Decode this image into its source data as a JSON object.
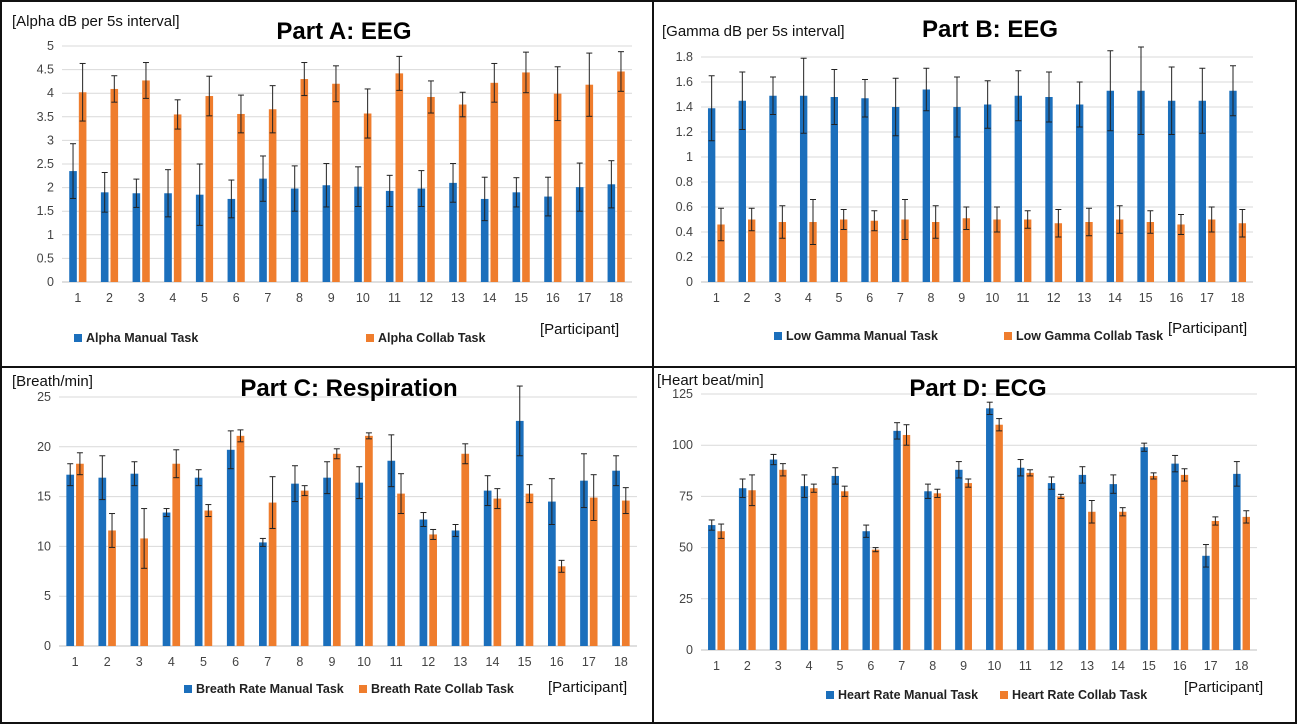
{
  "colors": {
    "manual": "#1b6fbc",
    "collab": "#ef7d2d",
    "grid": "#d9d9d9",
    "axis": "#bfbfbf",
    "border": "#111111"
  },
  "chart_data": [
    {
      "id": "A",
      "type": "bar",
      "title": "Part A: EEG",
      "ylabel": "[Alpha dB per 5s interval]",
      "xlabel": "[Participant]",
      "ylim": [
        0,
        5
      ],
      "yticks": [
        0,
        0.5,
        1,
        1.5,
        2,
        2.5,
        3,
        3.5,
        4,
        4.5,
        5
      ],
      "ytick_labels": [
        "0",
        "0.5",
        "1",
        "1.5",
        "2",
        "2.5",
        "3",
        "3.5",
        "4",
        "4.5",
        "5"
      ],
      "grid": true,
      "legend_position": "bottom",
      "categories": [
        "1",
        "2",
        "3",
        "4",
        "5",
        "6",
        "7",
        "8",
        "9",
        "10",
        "11",
        "12",
        "13",
        "14",
        "15",
        "16",
        "17",
        "18"
      ],
      "series": [
        {
          "name": "Alpha Manual Task",
          "values": [
            2.35,
            1.9,
            1.88,
            1.88,
            1.85,
            1.76,
            2.19,
            1.98,
            2.05,
            2.02,
            1.93,
            1.98,
            2.1,
            1.76,
            1.9,
            1.81,
            2.01,
            2.07
          ],
          "errors": [
            0.58,
            0.42,
            0.3,
            0.5,
            0.65,
            0.4,
            0.48,
            0.48,
            0.46,
            0.42,
            0.33,
            0.38,
            0.41,
            0.46,
            0.31,
            0.41,
            0.51,
            0.5
          ]
        },
        {
          "name": "Alpha Collab Task",
          "values": [
            4.02,
            4.09,
            4.27,
            3.55,
            3.94,
            3.56,
            3.66,
            4.3,
            4.2,
            3.57,
            4.42,
            3.92,
            3.76,
            4.22,
            4.44,
            3.99,
            4.18,
            4.46
          ],
          "errors": [
            0.61,
            0.28,
            0.38,
            0.31,
            0.42,
            0.4,
            0.5,
            0.35,
            0.38,
            0.52,
            0.36,
            0.34,
            0.26,
            0.41,
            0.43,
            0.57,
            0.67,
            0.42
          ]
        }
      ]
    },
    {
      "id": "B",
      "type": "bar",
      "title": "Part B: EEG",
      "ylabel": "[Gamma dB per 5s interval]",
      "xlabel": "[Participant]",
      "ylim": [
        0,
        1.8
      ],
      "yticks": [
        0,
        0.2,
        0.4,
        0.6,
        0.8,
        1,
        1.2,
        1.4,
        1.6,
        1.8
      ],
      "ytick_labels": [
        "0",
        "0.2",
        "0.4",
        "0.6",
        "0.8",
        "1",
        "1.2",
        "1.4",
        "1.6",
        "1.8"
      ],
      "grid": true,
      "legend_position": "bottom",
      "categories": [
        "1",
        "2",
        "3",
        "4",
        "5",
        "6",
        "7",
        "8",
        "9",
        "10",
        "11",
        "12",
        "13",
        "14",
        "15",
        "16",
        "17",
        "18"
      ],
      "series": [
        {
          "name": "Low Gamma Manual Task",
          "values": [
            1.39,
            1.45,
            1.49,
            1.49,
            1.48,
            1.47,
            1.4,
            1.54,
            1.4,
            1.42,
            1.49,
            1.48,
            1.42,
            1.53,
            1.53,
            1.45,
            1.45,
            1.53
          ],
          "errors": [
            0.26,
            0.23,
            0.15,
            0.3,
            0.22,
            0.15,
            0.23,
            0.17,
            0.24,
            0.19,
            0.2,
            0.2,
            0.18,
            0.32,
            0.35,
            0.27,
            0.26,
            0.2
          ]
        },
        {
          "name": "Low Gamma Collab Task",
          "values": [
            0.46,
            0.5,
            0.48,
            0.48,
            0.5,
            0.49,
            0.5,
            0.48,
            0.51,
            0.5,
            0.5,
            0.47,
            0.48,
            0.5,
            0.48,
            0.46,
            0.5,
            0.47
          ],
          "errors": [
            0.13,
            0.09,
            0.13,
            0.18,
            0.08,
            0.08,
            0.16,
            0.13,
            0.09,
            0.1,
            0.07,
            0.11,
            0.11,
            0.11,
            0.09,
            0.08,
            0.1,
            0.11
          ]
        }
      ]
    },
    {
      "id": "C",
      "type": "bar",
      "title": "Part C: Respiration",
      "ylabel": "[Breath/min]",
      "xlabel": "[Participant]",
      "ylim": [
        0,
        25
      ],
      "yticks": [
        0,
        5,
        10,
        15,
        20,
        25
      ],
      "ytick_labels": [
        "0",
        "5",
        "10",
        "15",
        "20",
        "25"
      ],
      "grid": true,
      "legend_position": "bottom",
      "categories": [
        "1",
        "2",
        "3",
        "4",
        "5",
        "6",
        "7",
        "8",
        "9",
        "10",
        "11",
        "12",
        "13",
        "14",
        "15",
        "16",
        "17",
        "18"
      ],
      "series": [
        {
          "name": "Breath Rate Manual Task",
          "values": [
            17.2,
            16.9,
            17.3,
            13.4,
            16.9,
            19.7,
            10.4,
            16.3,
            16.9,
            16.4,
            18.6,
            12.7,
            11.6,
            15.6,
            22.6,
            14.5,
            16.6,
            17.6
          ],
          "errors": [
            1.1,
            2.2,
            1.2,
            0.4,
            0.8,
            1.9,
            0.4,
            1.8,
            1.6,
            1.6,
            2.6,
            0.7,
            0.6,
            1.5,
            3.5,
            2.3,
            2.7,
            1.5
          ]
        },
        {
          "name": "Breath Rate Collab Task",
          "values": [
            18.3,
            11.6,
            10.8,
            18.3,
            13.6,
            21.1,
            14.4,
            15.6,
            19.3,
            21.1,
            15.3,
            11.2,
            19.3,
            14.8,
            15.3,
            8.0,
            14.9,
            14.6
          ],
          "errors": [
            1.1,
            1.7,
            3.0,
            1.4,
            0.6,
            0.6,
            2.6,
            0.5,
            0.5,
            0.3,
            2.0,
            0.5,
            1.0,
            1.0,
            0.9,
            0.6,
            2.3,
            1.3
          ]
        }
      ]
    },
    {
      "id": "D",
      "type": "bar",
      "title": "Part D: ECG",
      "ylabel": "[Heart beat/min]",
      "xlabel": "[Participant]",
      "ylim": [
        0,
        125
      ],
      "yticks": [
        0,
        25,
        50,
        75,
        100,
        125
      ],
      "ytick_labels": [
        "0",
        "25",
        "50",
        "75",
        "100",
        "125"
      ],
      "grid": true,
      "legend_position": "bottom",
      "categories": [
        "1",
        "2",
        "3",
        "4",
        "5",
        "6",
        "7",
        "8",
        "9",
        "10",
        "11",
        "12",
        "13",
        "14",
        "15",
        "16",
        "17",
        "18"
      ],
      "series": [
        {
          "name": "Heart Rate Manual Task",
          "values": [
            61,
            79,
            93,
            80,
            85,
            58,
            107,
            77.5,
            88,
            118,
            89,
            81.5,
            85.5,
            81,
            99,
            91,
            46,
            86
          ],
          "errors": [
            2.5,
            4.5,
            2.5,
            5.5,
            4,
            3,
            4,
            3.5,
            4,
            3,
            4,
            3,
            4,
            4.5,
            2,
            4,
            5.5,
            6
          ]
        },
        {
          "name": "Heart Rate Collab Task",
          "values": [
            58,
            78,
            88,
            79,
            77.5,
            49,
            105,
            76.5,
            81.5,
            110,
            86.5,
            75,
            67.5,
            67.5,
            85,
            85.5,
            63,
            65
          ],
          "errors": [
            3.5,
            7.5,
            3,
            2,
            2.5,
            1,
            5,
            2,
            2,
            3,
            1.5,
            1,
            5.5,
            2,
            1.5,
            3,
            2,
            3
          ]
        }
      ]
    }
  ]
}
